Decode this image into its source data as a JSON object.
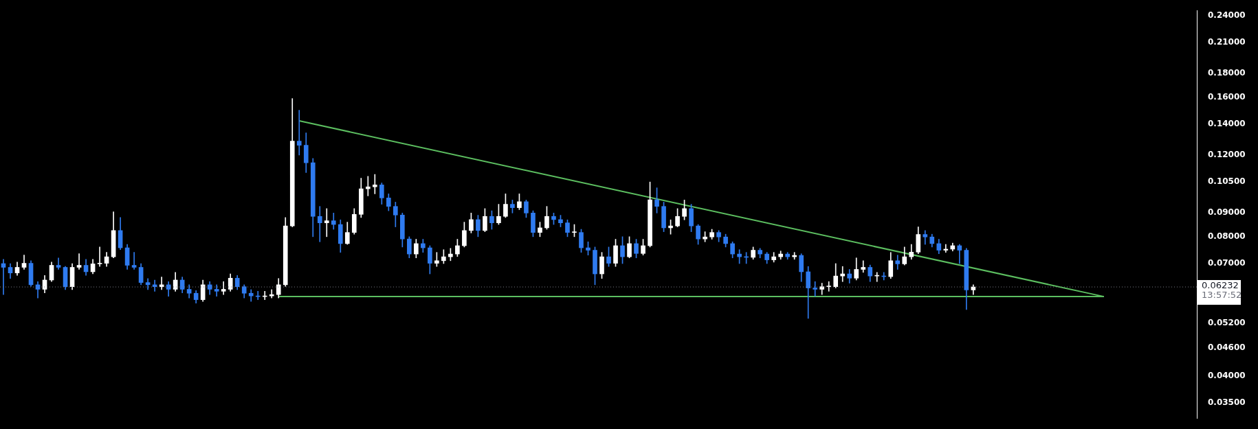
{
  "chart_data": {
    "type": "candlestick",
    "categories": [
      null,
      null,
      null,
      null,
      null,
      null,
      null,
      null,
      null,
      null,
      null,
      null,
      null,
      null,
      null,
      null,
      null,
      null,
      null,
      null,
      null,
      null,
      null,
      null,
      null,
      null,
      null,
      null,
      null,
      null,
      null,
      null,
      null,
      null,
      null,
      null,
      null,
      null,
      null,
      null,
      null,
      null,
      null,
      null,
      null,
      null,
      null,
      null,
      null,
      null,
      null,
      null,
      null,
      null,
      null,
      null,
      null,
      null,
      null,
      null,
      null,
      null,
      null,
      null,
      null,
      null,
      null,
      null,
      null,
      null,
      null,
      null,
      null,
      null,
      null,
      null,
      null,
      null,
      null,
      null,
      null,
      null,
      null,
      null,
      null,
      null,
      null,
      null,
      null,
      null,
      null,
      null,
      null,
      null,
      null,
      null,
      null,
      null,
      null,
      null,
      null,
      null,
      null,
      null,
      null,
      null,
      null,
      null,
      null,
      null,
      null,
      null,
      null,
      null,
      null,
      null,
      null,
      null,
      null,
      null,
      null,
      null,
      null,
      null,
      null,
      null,
      null,
      null,
      null,
      null,
      null,
      null,
      null,
      null,
      null,
      null,
      null,
      null,
      null,
      null,
      null,
      null,
      null,
      null,
      null,
      null,
      null,
      null,
      null,
      null,
      null,
      null,
      null,
      null,
      null,
      null,
      null,
      null,
      null,
      null,
      null,
      null,
      null,
      null,
      null,
      null,
      null,
      null,
      null,
      null,
      null,
      null,
      null,
      null
    ],
    "ohlc": [
      [
        0.07,
        0.0715,
        0.06,
        0.0687
      ],
      [
        0.0687,
        0.07,
        0.065,
        0.0668
      ],
      [
        0.0668,
        0.0705,
        0.066,
        0.0687
      ],
      [
        0.0687,
        0.073,
        0.068,
        0.0701
      ],
      [
        0.0701,
        0.071,
        0.0625,
        0.063
      ],
      [
        0.063,
        0.064,
        0.059,
        0.0616
      ],
      [
        0.0616,
        0.066,
        0.0605,
        0.0645
      ],
      [
        0.0645,
        0.0705,
        0.064,
        0.0694
      ],
      [
        0.0694,
        0.072,
        0.068,
        0.0687
      ],
      [
        0.0687,
        0.069,
        0.0615,
        0.0624
      ],
      [
        0.0624,
        0.07,
        0.0615,
        0.0687
      ],
      [
        0.0687,
        0.0735,
        0.068,
        0.0694
      ],
      [
        0.0694,
        0.0715,
        0.066,
        0.0672
      ],
      [
        0.0672,
        0.0715,
        0.0665,
        0.0699
      ],
      [
        0.0699,
        0.076,
        0.069,
        0.0701
      ],
      [
        0.0701,
        0.074,
        0.069,
        0.0724
      ],
      [
        0.0724,
        0.0905,
        0.072,
        0.0825
      ],
      [
        0.0825,
        0.088,
        0.075,
        0.0757
      ],
      [
        0.0757,
        0.077,
        0.068,
        0.0694
      ],
      [
        0.0694,
        0.074,
        0.068,
        0.0687
      ],
      [
        0.0687,
        0.07,
        0.063,
        0.0637
      ],
      [
        0.0637,
        0.065,
        0.0615,
        0.063
      ],
      [
        0.063,
        0.0645,
        0.061,
        0.0624
      ],
      [
        0.0624,
        0.0655,
        0.0615,
        0.063
      ],
      [
        0.063,
        0.064,
        0.0595,
        0.0616
      ],
      [
        0.0616,
        0.067,
        0.061,
        0.0645
      ],
      [
        0.0645,
        0.0655,
        0.0605,
        0.0616
      ],
      [
        0.0616,
        0.063,
        0.059,
        0.0604
      ],
      [
        0.0604,
        0.0612,
        0.0575,
        0.0585
      ],
      [
        0.0585,
        0.0645,
        0.058,
        0.063
      ],
      [
        0.063,
        0.064,
        0.06,
        0.0616
      ],
      [
        0.0616,
        0.063,
        0.0595,
        0.061
      ],
      [
        0.061,
        0.064,
        0.06,
        0.0616
      ],
      [
        0.0616,
        0.0665,
        0.061,
        0.0651
      ],
      [
        0.0651,
        0.066,
        0.0615,
        0.0624
      ],
      [
        0.0624,
        0.063,
        0.059,
        0.0604
      ],
      [
        0.0604,
        0.0615,
        0.058,
        0.0596
      ],
      [
        0.0596,
        0.061,
        0.0585,
        0.0594
      ],
      [
        0.0594,
        0.061,
        0.0585,
        0.0596
      ],
      [
        0.0596,
        0.0615,
        0.059,
        0.06
      ],
      [
        0.06,
        0.065,
        0.059,
        0.063
      ],
      [
        0.063,
        0.088,
        0.0625,
        0.0844
      ],
      [
        0.0844,
        0.159,
        0.084,
        0.1286
      ],
      [
        0.1286,
        0.15,
        0.12,
        0.126
      ],
      [
        0.126,
        0.134,
        0.11,
        0.1155
      ],
      [
        0.1155,
        0.118,
        0.08,
        0.0885
      ],
      [
        0.0885,
        0.093,
        0.078,
        0.0857
      ],
      [
        0.0857,
        0.092,
        0.08,
        0.0866
      ],
      [
        0.0866,
        0.09,
        0.083,
        0.085
      ],
      [
        0.085,
        0.087,
        0.074,
        0.0773
      ],
      [
        0.0773,
        0.086,
        0.077,
        0.0817
      ],
      [
        0.0817,
        0.092,
        0.081,
        0.0894
      ],
      [
        0.0894,
        0.107,
        0.088,
        0.1015
      ],
      [
        0.1015,
        0.108,
        0.098,
        0.1025
      ],
      [
        0.1025,
        0.109,
        0.099,
        0.1035
      ],
      [
        0.1035,
        0.1045,
        0.094,
        0.097
      ],
      [
        0.097,
        0.099,
        0.091,
        0.093
      ],
      [
        0.093,
        0.095,
        0.084,
        0.0891
      ],
      [
        0.0891,
        0.09,
        0.076,
        0.0791
      ],
      [
        0.0791,
        0.08,
        0.072,
        0.0734
      ],
      [
        0.0734,
        0.079,
        0.072,
        0.0773
      ],
      [
        0.0773,
        0.079,
        0.074,
        0.0757
      ],
      [
        0.0757,
        0.0765,
        0.0665,
        0.0701
      ],
      [
        0.0701,
        0.074,
        0.069,
        0.071
      ],
      [
        0.071,
        0.075,
        0.07,
        0.0724
      ],
      [
        0.0724,
        0.0755,
        0.071,
        0.0734
      ],
      [
        0.0734,
        0.079,
        0.0725,
        0.0765
      ],
      [
        0.0765,
        0.086,
        0.076,
        0.0825
      ],
      [
        0.0825,
        0.09,
        0.0815,
        0.0871
      ],
      [
        0.0871,
        0.089,
        0.08,
        0.0825
      ],
      [
        0.0825,
        0.092,
        0.082,
        0.0885
      ],
      [
        0.0885,
        0.091,
        0.083,
        0.0857
      ],
      [
        0.0857,
        0.094,
        0.085,
        0.0885
      ],
      [
        0.0885,
        0.099,
        0.088,
        0.094
      ],
      [
        0.094,
        0.096,
        0.09,
        0.0924
      ],
      [
        0.0924,
        0.099,
        0.0915,
        0.0952
      ],
      [
        0.0952,
        0.096,
        0.088,
        0.09
      ],
      [
        0.09,
        0.091,
        0.08,
        0.0817
      ],
      [
        0.0817,
        0.086,
        0.08,
        0.0836
      ],
      [
        0.0836,
        0.093,
        0.083,
        0.0885
      ],
      [
        0.0885,
        0.09,
        0.085,
        0.0871
      ],
      [
        0.0871,
        0.089,
        0.084,
        0.0857
      ],
      [
        0.0857,
        0.087,
        0.08,
        0.0817
      ],
      [
        0.0817,
        0.085,
        0.08,
        0.0817
      ],
      [
        0.0817,
        0.083,
        0.074,
        0.0757
      ],
      [
        0.0757,
        0.078,
        0.073,
        0.0748
      ],
      [
        0.0748,
        0.076,
        0.063,
        0.0665
      ],
      [
        0.0665,
        0.074,
        0.065,
        0.0724
      ],
      [
        0.0724,
        0.076,
        0.069,
        0.0701
      ],
      [
        0.0701,
        0.079,
        0.069,
        0.0765
      ],
      [
        0.0765,
        0.08,
        0.07,
        0.0724
      ],
      [
        0.0724,
        0.08,
        0.072,
        0.0773
      ],
      [
        0.0773,
        0.079,
        0.072,
        0.0736
      ],
      [
        0.0736,
        0.079,
        0.073,
        0.0765
      ],
      [
        0.0765,
        0.105,
        0.076,
        0.0961
      ],
      [
        0.0961,
        0.102,
        0.09,
        0.093
      ],
      [
        0.093,
        0.095,
        0.082,
        0.0836
      ],
      [
        0.0836,
        0.087,
        0.081,
        0.0844
      ],
      [
        0.0844,
        0.092,
        0.084,
        0.0885
      ],
      [
        0.0885,
        0.096,
        0.087,
        0.092
      ],
      [
        0.092,
        0.094,
        0.082,
        0.0844
      ],
      [
        0.0844,
        0.085,
        0.077,
        0.0791
      ],
      [
        0.0791,
        0.082,
        0.078,
        0.0799
      ],
      [
        0.0799,
        0.083,
        0.079,
        0.0817
      ],
      [
        0.0817,
        0.0825,
        0.078,
        0.0799
      ],
      [
        0.0799,
        0.081,
        0.076,
        0.0773
      ],
      [
        0.0773,
        0.078,
        0.072,
        0.0734
      ],
      [
        0.0734,
        0.075,
        0.07,
        0.0724
      ],
      [
        0.0724,
        0.074,
        0.07,
        0.0722
      ],
      [
        0.0722,
        0.076,
        0.0715,
        0.0748
      ],
      [
        0.0748,
        0.0755,
        0.072,
        0.0734
      ],
      [
        0.0734,
        0.074,
        0.07,
        0.0713
      ],
      [
        0.0713,
        0.074,
        0.0705,
        0.0724
      ],
      [
        0.0724,
        0.0745,
        0.0715,
        0.0734
      ],
      [
        0.0734,
        0.074,
        0.0715,
        0.0724
      ],
      [
        0.0724,
        0.074,
        0.0715,
        0.0729
      ],
      [
        0.0729,
        0.0735,
        0.064,
        0.0672
      ],
      [
        0.0672,
        0.069,
        0.0533,
        0.062
      ],
      [
        0.062,
        0.064,
        0.0595,
        0.0616
      ],
      [
        0.0616,
        0.0635,
        0.06,
        0.0624
      ],
      [
        0.0624,
        0.064,
        0.061,
        0.0624
      ],
      [
        0.0624,
        0.07,
        0.062,
        0.0658
      ],
      [
        0.0658,
        0.069,
        0.064,
        0.0665
      ],
      [
        0.0665,
        0.068,
        0.0635,
        0.0651
      ],
      [
        0.0651,
        0.072,
        0.0645,
        0.068
      ],
      [
        0.068,
        0.071,
        0.067,
        0.0687
      ],
      [
        0.0687,
        0.0695,
        0.064,
        0.0658
      ],
      [
        0.0658,
        0.067,
        0.064,
        0.0658
      ],
      [
        0.0658,
        0.067,
        0.0645,
        0.0656
      ],
      [
        0.0656,
        0.074,
        0.065,
        0.071
      ],
      [
        0.071,
        0.073,
        0.068,
        0.0699
      ],
      [
        0.0699,
        0.076,
        0.0695,
        0.0724
      ],
      [
        0.0724,
        0.077,
        0.0715,
        0.0741
      ],
      [
        0.0741,
        0.084,
        0.0735,
        0.0809
      ],
      [
        0.0809,
        0.0825,
        0.077,
        0.0799
      ],
      [
        0.0799,
        0.081,
        0.076,
        0.0773
      ],
      [
        0.0773,
        0.079,
        0.0735,
        0.0748
      ],
      [
        0.0748,
        0.077,
        0.074,
        0.0752
      ],
      [
        0.0752,
        0.0775,
        0.0745,
        0.0765
      ],
      [
        0.0765,
        0.077,
        0.07,
        0.0748
      ],
      [
        0.0748,
        0.0755,
        0.0557,
        0.0614
      ],
      [
        0.0614,
        0.063,
        0.06,
        0.06232
      ],
      null,
      null,
      null,
      null,
      null,
      null,
      null,
      null,
      null,
      null,
      null,
      null,
      null,
      null,
      null,
      null,
      null,
      null,
      null,
      null,
      null,
      null,
      null,
      null,
      null,
      null,
      null,
      null,
      null,
      null,
      null,
      null
    ],
    "colors": [
      "#2f7bf0",
      "#2f7bf0",
      "#ffffff",
      "#ffffff",
      "#2f7bf0",
      "#2f7bf0",
      "#ffffff",
      "#ffffff",
      "#2f7bf0",
      "#2f7bf0",
      "#ffffff",
      "#ffffff",
      "#2f7bf0",
      "#ffffff",
      "#ffffff",
      "#ffffff",
      "#ffffff",
      "#2f7bf0",
      "#2f7bf0",
      "#2f7bf0",
      "#2f7bf0",
      "#2f7bf0",
      "#2f7bf0",
      "#ffffff",
      "#2f7bf0",
      "#ffffff",
      "#2f7bf0",
      "#2f7bf0",
      "#2f7bf0",
      "#ffffff",
      "#2f7bf0",
      "#2f7bf0",
      "#ffffff",
      "#ffffff",
      "#2f7bf0",
      "#2f7bf0",
      "#2f7bf0",
      "#2f7bf0",
      "#ffffff",
      "#ffffff",
      "#ffffff",
      "#ffffff",
      "#ffffff",
      "#2f7bf0",
      "#2f7bf0",
      "#2f7bf0",
      "#2f7bf0",
      "#ffffff",
      "#2f7bf0",
      "#2f7bf0",
      "#ffffff",
      "#ffffff",
      "#ffffff",
      "#ffffff",
      "#ffffff",
      "#2f7bf0",
      "#2f7bf0",
      "#2f7bf0",
      "#2f7bf0",
      "#2f7bf0",
      "#ffffff",
      "#2f7bf0",
      "#2f7bf0",
      "#ffffff",
      "#ffffff",
      "#ffffff",
      "#ffffff",
      "#ffffff",
      "#ffffff",
      "#2f7bf0",
      "#ffffff",
      "#2f7bf0",
      "#ffffff",
      "#ffffff",
      "#2f7bf0",
      "#ffffff",
      "#2f7bf0",
      "#2f7bf0",
      "#ffffff",
      "#ffffff",
      "#2f7bf0",
      "#2f7bf0",
      "#2f7bf0",
      "#ffffff",
      "#2f7bf0",
      "#2f7bf0",
      "#2f7bf0",
      "#ffffff",
      "#2f7bf0",
      "#ffffff",
      "#2f7bf0",
      "#ffffff",
      "#2f7bf0",
      "#ffffff",
      "#ffffff",
      "#2f7bf0",
      "#2f7bf0",
      "#ffffff",
      "#ffffff",
      "#ffffff",
      "#2f7bf0",
      "#2f7bf0",
      "#ffffff",
      "#ffffff",
      "#2f7bf0",
      "#2f7bf0",
      "#2f7bf0",
      "#2f7bf0",
      "#2f7bf0",
      "#ffffff",
      "#2f7bf0",
      "#2f7bf0",
      "#ffffff",
      "#ffffff",
      "#2f7bf0",
      "#ffffff",
      "#2f7bf0",
      "#2f7bf0",
      "#2f7bf0",
      "#ffffff",
      "#ffffff",
      "#ffffff",
      "#ffffff",
      "#2f7bf0",
      "#ffffff",
      "#ffffff",
      "#2f7bf0",
      "#ffffff",
      "#2f7bf0",
      "#ffffff",
      "#2f7bf0",
      "#ffffff",
      "#ffffff",
      "#ffffff",
      "#2f7bf0",
      "#2f7bf0",
      "#2f7bf0",
      "#ffffff",
      "#ffffff",
      "#2f7bf0",
      "#2f7bf0",
      "#ffffff",
      null,
      null,
      null,
      null,
      null,
      null,
      null,
      null,
      null,
      null,
      null,
      null,
      null,
      null,
      null,
      null,
      null,
      null,
      null,
      null,
      null,
      null,
      null,
      null,
      null,
      null,
      null,
      null,
      null,
      null,
      null,
      null
    ],
    "series": [
      {
        "type": "line",
        "color": "#5cbf60",
        "values": [
          null,
          null,
          null,
          null,
          null,
          null,
          null,
          null,
          null,
          null,
          null,
          null,
          null,
          null,
          null,
          null,
          null,
          null,
          null,
          null,
          null,
          null,
          null,
          null,
          null,
          null,
          null,
          null,
          null,
          null,
          null,
          null,
          null,
          null,
          null,
          null,
          null,
          null,
          null,
          null,
          null,
          null,
          null,
          0.1423,
          null,
          null,
          null,
          null,
          null,
          null,
          null,
          null,
          null,
          null,
          null,
          null,
          null,
          null,
          null,
          null,
          null,
          null,
          null,
          null,
          null,
          null,
          null,
          null,
          null,
          null,
          null,
          null,
          null,
          null,
          null,
          null,
          null,
          null,
          null,
          null,
          null,
          null,
          null,
          null,
          null,
          null,
          null,
          null,
          null,
          null,
          null,
          null,
          null,
          null,
          null,
          null,
          null,
          null,
          null,
          null,
          null,
          null,
          null,
          null,
          null,
          null,
          null,
          null,
          null,
          null,
          null,
          null,
          null,
          null,
          null,
          null,
          null,
          null,
          null,
          null,
          null,
          null,
          null,
          null,
          null,
          null,
          null,
          null,
          null,
          null,
          null,
          null,
          null,
          null,
          null,
          null,
          null,
          null,
          null,
          null,
          null,
          null,
          null,
          null,
          null,
          null,
          null,
          null,
          null,
          null,
          null,
          null,
          null,
          null,
          null,
          null,
          null,
          null,
          null,
          null,
          0.0594,
          null,
          null,
          null,
          null,
          null,
          null,
          null,
          null,
          null,
          null,
          null,
          null,
          null
        ]
      },
      {
        "type": "line",
        "color": "#5cbf60",
        "values": [
          null,
          null,
          null,
          null,
          null,
          null,
          null,
          null,
          null,
          null,
          null,
          null,
          null,
          null,
          null,
          null,
          null,
          null,
          null,
          null,
          null,
          null,
          null,
          null,
          null,
          null,
          null,
          null,
          null,
          null,
          null,
          null,
          null,
          null,
          null,
          null,
          null,
          null,
          null,
          null,
          0.0594,
          null,
          null,
          null,
          null,
          null,
          null,
          null,
          null,
          null,
          null,
          null,
          null,
          null,
          null,
          null,
          null,
          null,
          null,
          null,
          null,
          null,
          null,
          null,
          null,
          null,
          null,
          null,
          null,
          null,
          null,
          null,
          null,
          null,
          null,
          null,
          null,
          null,
          null,
          null,
          null,
          null,
          null,
          null,
          null,
          null,
          null,
          null,
          null,
          null,
          null,
          null,
          null,
          null,
          null,
          null,
          null,
          null,
          null,
          null,
          null,
          null,
          null,
          null,
          null,
          null,
          null,
          null,
          null,
          null,
          null,
          null,
          null,
          null,
          null,
          null,
          null,
          null,
          null,
          null,
          null,
          null,
          null,
          null,
          null,
          null,
          null,
          null,
          null,
          null,
          null,
          null,
          null,
          null,
          null,
          null,
          null,
          null,
          null,
          null,
          null,
          null,
          null,
          null,
          null,
          null,
          null,
          null,
          null,
          null,
          null,
          null,
          null,
          null,
          null,
          null,
          null,
          null,
          null,
          null,
          0.0594,
          null,
          null,
          null,
          null,
          null,
          null,
          null,
          null,
          null,
          null,
          null,
          null,
          null
        ]
      }
    ],
    "ylim": [
      0.0324,
      0.2463
    ],
    "yticks": [
      {
        "value": 0.035,
        "label": "0.03500"
      },
      {
        "value": 0.04,
        "label": "0.04000"
      },
      {
        "value": 0.046,
        "label": "0.04600"
      },
      {
        "value": 0.052,
        "label": "0.05200"
      },
      {
        "value": 0.07,
        "label": "0.07000"
      },
      {
        "value": 0.08,
        "label": "0.08000"
      },
      {
        "value": 0.09,
        "label": "0.09000"
      },
      {
        "value": 0.105,
        "label": "0.10500"
      },
      {
        "value": 0.12,
        "label": "0.12000"
      },
      {
        "value": 0.14,
        "label": "0.14000"
      },
      {
        "value": 0.16,
        "label": "0.16000"
      },
      {
        "value": 0.18,
        "label": "0.18000"
      },
      {
        "value": 0.21,
        "label": "0.21000"
      },
      {
        "value": 0.24,
        "label": "0.24000"
      }
    ],
    "log": true,
    "grid": false,
    "tick_labels": "y",
    "ref_lines": [
      {
        "axis": "y",
        "value": 0.06232,
        "label": "0.06232",
        "color": "#787b86",
        "line_style": "dotted"
      }
    ],
    "annotations": [
      "13:57:52"
    ]
  }
}
